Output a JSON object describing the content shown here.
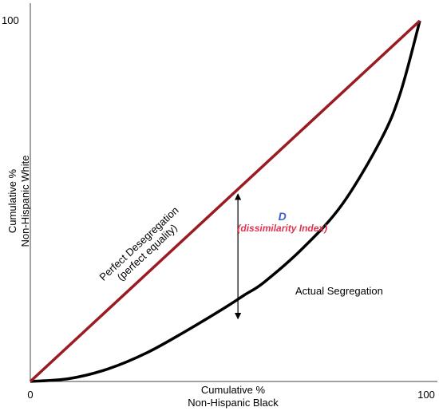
{
  "chart_data": {
    "type": "line",
    "title": "",
    "xlabel": [
      "Cumulative %",
      "Non-Hispanic Black"
    ],
    "ylabel": [
      "Cumulative %",
      "Non-Hispanic White"
    ],
    "xlim": [
      0,
      100
    ],
    "ylim": [
      0,
      100
    ],
    "grid": false,
    "x_tick_labels": [
      "0",
      "100"
    ],
    "y_tick_labels": [
      "100"
    ],
    "series": [
      {
        "id": "equality",
        "color": "#9b1b23",
        "x": [
          0,
          100
        ],
        "y": [
          0,
          100
        ]
      },
      {
        "id": "actual",
        "color": "#000000",
        "x": [
          0,
          10,
          20,
          30,
          40,
          50,
          55,
          60,
          70,
          80,
          90,
          95,
          100
        ],
        "y": [
          0,
          0.8,
          3.5,
          8,
          14,
          20.5,
          24,
          27.5,
          37,
          49,
          67,
          80,
          100
        ]
      }
    ],
    "annotations": {
      "equality_label": [
        "Perfect Desegregation",
        "(perfect equality)"
      ],
      "actual_label": "Actual Segregation",
      "index_symbol": "D",
      "index_name": "(dissimilarity Index)",
      "arrow": {
        "x": 53.3,
        "y_from": 16.5,
        "y_to": 53.3
      }
    },
    "colors": {
      "index_symbol": "#3a5fcd",
      "index_name": "#e0334f"
    }
  }
}
